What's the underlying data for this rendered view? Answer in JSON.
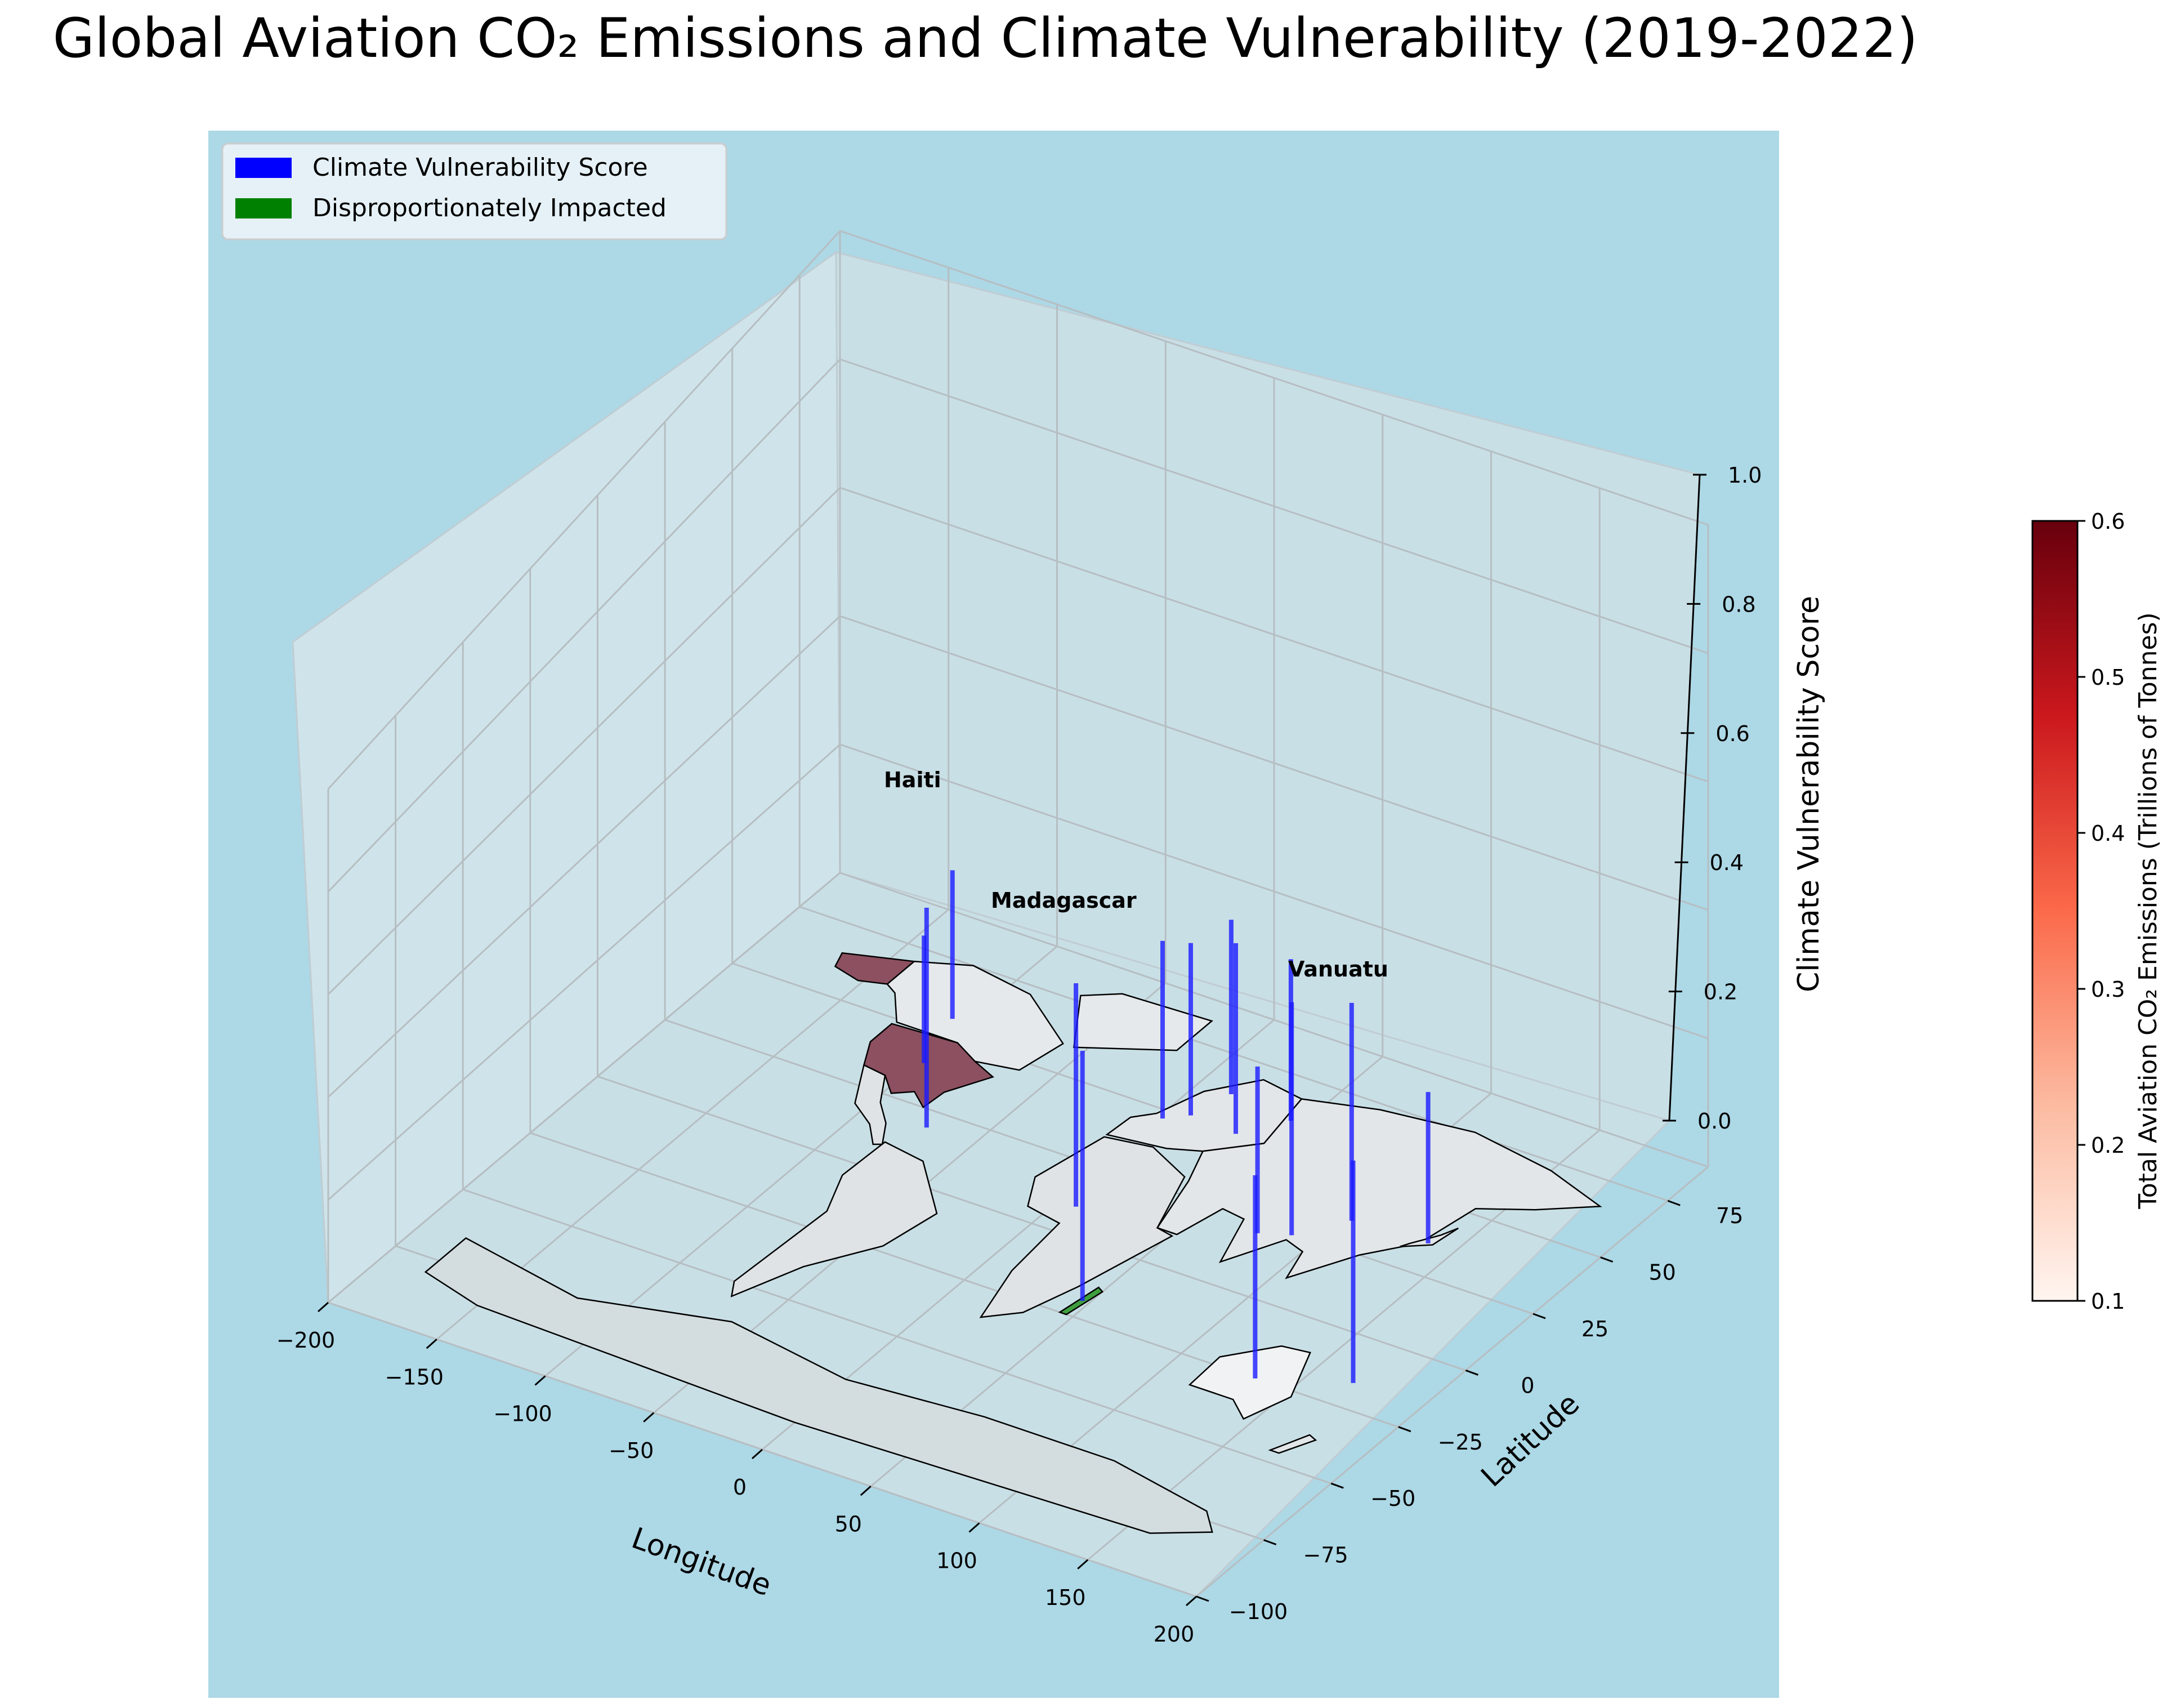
{
  "chart_data": {
    "type": "bar",
    "subtype": "3d-stem-map",
    "title": "Global Aviation CO₂ Emissions and Climate Vulnerability (2019-2022)",
    "xlabel": "Longitude",
    "ylabel": "Latitude",
    "zlabel": "Climate Vulnerability Score",
    "xlim": [
      -200,
      200
    ],
    "ylim": [
      -100,
      90
    ],
    "zlim": [
      0,
      1.0
    ],
    "x_ticks": [
      "−200",
      "−150",
      "−100",
      "−50",
      "0",
      "50",
      "100",
      "150",
      "200"
    ],
    "y_ticks": [
      "−100",
      "−75",
      "−50",
      "−25",
      "0",
      "25",
      "50",
      "75"
    ],
    "z_ticks": [
      "0.0",
      "0.2",
      "0.4",
      "0.6",
      "0.8",
      "1.0"
    ],
    "grid": true,
    "legend_position": "top-left",
    "legend": [
      {
        "label": "Climate Vulnerability Score",
        "color": "#0000ff"
      },
      {
        "label": "Disproportionately Impacted",
        "color": "#008000"
      }
    ],
    "colorbar": {
      "label": "Total Aviation CO₂ Emissions (Trillions of Tonnes)",
      "colormap": "Reds",
      "range": [
        0.1,
        0.6
      ],
      "ticks": [
        "0.1",
        "0.2",
        "0.3",
        "0.4",
        "0.5",
        "0.6"
      ]
    },
    "annotations": [
      "Haiti",
      "Madagascar",
      "Vanuatu"
    ],
    "stems": [
      {
        "x": -98,
        "y": 39,
        "z": 0.21
      },
      {
        "x": -72,
        "y": 19,
        "z": 0.37
      },
      {
        "x": -106,
        "y": 56,
        "z": 0.24
      },
      {
        "x": 47,
        "y": -19,
        "z": 0.44
      },
      {
        "x": 168,
        "y": -16,
        "z": 0.39
      },
      {
        "x": 8,
        "y": 10,
        "z": 0.38
      },
      {
        "x": 10,
        "y": 51,
        "z": 0.28
      },
      {
        "x": 2,
        "y": 47,
        "z": 0.29
      },
      {
        "x": 15,
        "y": 62,
        "z": 0.28
      },
      {
        "x": 32,
        "y": 50,
        "z": 0.31
      },
      {
        "x": 45,
        "y": 60,
        "z": 0.26
      },
      {
        "x": 78,
        "y": 21,
        "z": 0.28
      },
      {
        "x": 104,
        "y": 35,
        "z": 0.36
      },
      {
        "x": 90,
        "y": 24,
        "z": 0.39
      },
      {
        "x": 138,
        "y": 36,
        "z": 0.25
      },
      {
        "x": 134,
        "y": -25,
        "z": 0.36
      }
    ],
    "highlighted_countries": [
      {
        "name": "United States",
        "emissions": 0.6
      },
      {
        "name": "Canada",
        "emissions": 0.6
      },
      {
        "name": "Madagascar",
        "impacted": true
      }
    ]
  }
}
